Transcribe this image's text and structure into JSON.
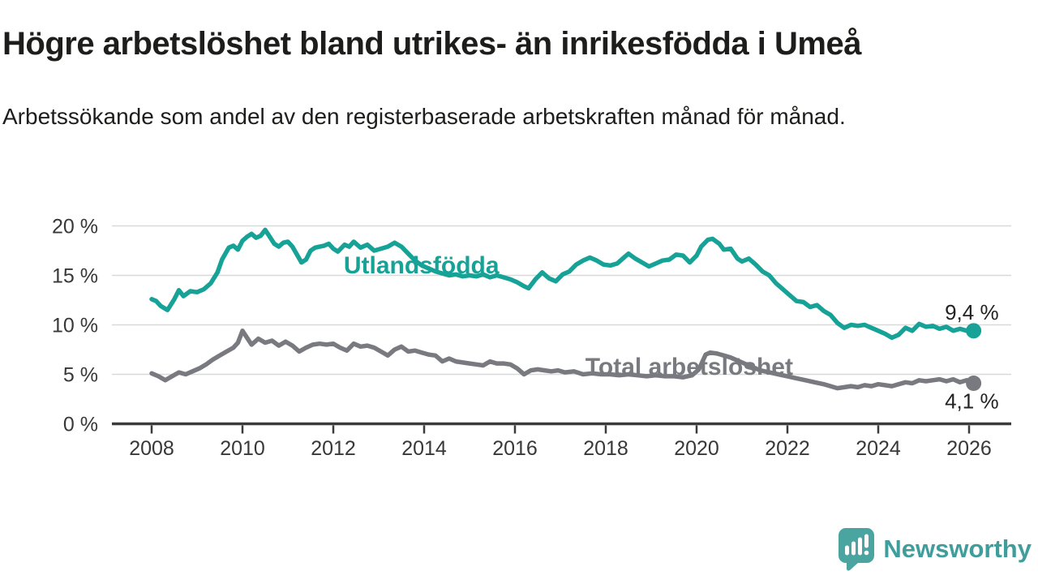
{
  "header": {
    "title": "Högre arbetslöshet bland utrikes- än inrikesfödda i Umeå",
    "subtitle": "Arbetssökande som andel av den registerbaserade arbetskraften månad för månad."
  },
  "branding": {
    "logo_text": "Newsworthy",
    "logo_icon": "speech-bubble-bar-chart-icon",
    "logo_color": "#4aa5a1",
    "logo_text_color": "#3f9e9b"
  },
  "colors": {
    "accent_teal": "#16a296",
    "accent_gray": "#797980",
    "axis_line": "#3b3b3a",
    "gridline": "#d9d9d9",
    "tick_text": "#383838",
    "annotation_text": "#222222"
  },
  "chart_data": {
    "type": "line",
    "title": "Högre arbetslöshet bland utrikes- än inrikesfödda i Umeå",
    "subtitle": "Arbetssökande som andel av den registerbaserade arbetskraften månad för månad.",
    "xlabel": "",
    "ylabel": "",
    "xlim": [
      2007.1,
      2027.0
    ],
    "ylim": [
      0,
      21
    ],
    "grid": true,
    "legend_position": "inline-labels",
    "x_ticks": [
      2008,
      2010,
      2012,
      2014,
      2016,
      2018,
      2020,
      2022,
      2024,
      2026
    ],
    "y_ticks": [
      {
        "value": 20,
        "label": "20 %"
      },
      {
        "value": 15,
        "label": "15 %"
      },
      {
        "value": 10,
        "label": "10 %"
      },
      {
        "value": 5,
        "label": "5 %"
      },
      {
        "value": 0,
        "label": "0 %"
      }
    ],
    "series": [
      {
        "name": "Utlandsfödda",
        "color": "#16a296",
        "end_label": "9,4 %",
        "end_value": 9.4,
        "label_year": 2012.23,
        "label_value": 15.2,
        "points": [
          [
            2008.0,
            12.6
          ],
          [
            2008.1,
            12.4
          ],
          [
            2008.2,
            11.9
          ],
          [
            2008.35,
            11.5
          ],
          [
            2008.5,
            12.6
          ],
          [
            2008.6,
            13.5
          ],
          [
            2008.7,
            12.9
          ],
          [
            2008.85,
            13.4
          ],
          [
            2009.0,
            13.3
          ],
          [
            2009.15,
            13.6
          ],
          [
            2009.3,
            14.2
          ],
          [
            2009.45,
            15.3
          ],
          [
            2009.55,
            16.6
          ],
          [
            2009.7,
            17.8
          ],
          [
            2009.8,
            18.0
          ],
          [
            2009.9,
            17.6
          ],
          [
            2010.0,
            18.5
          ],
          [
            2010.1,
            18.9
          ],
          [
            2010.2,
            19.2
          ],
          [
            2010.3,
            18.8
          ],
          [
            2010.4,
            19.0
          ],
          [
            2010.5,
            19.6
          ],
          [
            2010.6,
            18.9
          ],
          [
            2010.7,
            18.2
          ],
          [
            2010.8,
            17.9
          ],
          [
            2010.9,
            18.3
          ],
          [
            2011.0,
            18.4
          ],
          [
            2011.1,
            17.9
          ],
          [
            2011.2,
            17.1
          ],
          [
            2011.3,
            16.3
          ],
          [
            2011.4,
            16.6
          ],
          [
            2011.5,
            17.5
          ],
          [
            2011.6,
            17.8
          ],
          [
            2011.7,
            17.9
          ],
          [
            2011.8,
            18.0
          ],
          [
            2011.9,
            18.2
          ],
          [
            2012.0,
            17.7
          ],
          [
            2012.1,
            17.4
          ],
          [
            2012.25,
            18.1
          ],
          [
            2012.35,
            17.9
          ],
          [
            2012.45,
            18.4
          ],
          [
            2012.6,
            17.8
          ],
          [
            2012.75,
            18.1
          ],
          [
            2012.9,
            17.5
          ],
          [
            2013.05,
            17.7
          ],
          [
            2013.2,
            17.9
          ],
          [
            2013.35,
            18.3
          ],
          [
            2013.5,
            17.9
          ],
          [
            2013.65,
            17.2
          ],
          [
            2013.8,
            16.5
          ],
          [
            2013.95,
            16.0
          ],
          [
            2014.1,
            15.7
          ],
          [
            2014.25,
            15.4
          ],
          [
            2014.4,
            15.2
          ],
          [
            2014.55,
            15.0
          ],
          [
            2014.7,
            15.1
          ],
          [
            2014.85,
            14.9
          ],
          [
            2015.0,
            15.0
          ],
          [
            2015.15,
            14.9
          ],
          [
            2015.3,
            15.1
          ],
          [
            2015.45,
            14.8
          ],
          [
            2015.6,
            15.0
          ],
          [
            2015.75,
            14.8
          ],
          [
            2015.9,
            14.6
          ],
          [
            2016.05,
            14.3
          ],
          [
            2016.2,
            13.9
          ],
          [
            2016.3,
            13.7
          ],
          [
            2016.45,
            14.6
          ],
          [
            2016.6,
            15.3
          ],
          [
            2016.75,
            14.7
          ],
          [
            2016.9,
            14.4
          ],
          [
            2017.05,
            15.1
          ],
          [
            2017.2,
            15.4
          ],
          [
            2017.35,
            16.1
          ],
          [
            2017.5,
            16.5
          ],
          [
            2017.65,
            16.8
          ],
          [
            2017.8,
            16.5
          ],
          [
            2017.95,
            16.1
          ],
          [
            2018.1,
            16.0
          ],
          [
            2018.25,
            16.2
          ],
          [
            2018.4,
            16.8
          ],
          [
            2018.5,
            17.2
          ],
          [
            2018.65,
            16.7
          ],
          [
            2018.8,
            16.3
          ],
          [
            2018.95,
            15.9
          ],
          [
            2019.1,
            16.2
          ],
          [
            2019.25,
            16.5
          ],
          [
            2019.4,
            16.6
          ],
          [
            2019.55,
            17.1
          ],
          [
            2019.7,
            17.0
          ],
          [
            2019.85,
            16.3
          ],
          [
            2020.0,
            17.0
          ],
          [
            2020.1,
            17.9
          ],
          [
            2020.25,
            18.6
          ],
          [
            2020.35,
            18.7
          ],
          [
            2020.5,
            18.2
          ],
          [
            2020.6,
            17.6
          ],
          [
            2020.75,
            17.7
          ],
          [
            2020.9,
            16.7
          ],
          [
            2021.0,
            16.4
          ],
          [
            2021.15,
            16.7
          ],
          [
            2021.3,
            16.1
          ],
          [
            2021.45,
            15.4
          ],
          [
            2021.6,
            15.0
          ],
          [
            2021.75,
            14.2
          ],
          [
            2021.9,
            13.6
          ],
          [
            2022.05,
            13.0
          ],
          [
            2022.2,
            12.4
          ],
          [
            2022.35,
            12.3
          ],
          [
            2022.5,
            11.8
          ],
          [
            2022.65,
            12.0
          ],
          [
            2022.8,
            11.4
          ],
          [
            2022.95,
            11.0
          ],
          [
            2023.1,
            10.2
          ],
          [
            2023.25,
            9.7
          ],
          [
            2023.4,
            10.0
          ],
          [
            2023.55,
            9.9
          ],
          [
            2023.7,
            10.0
          ],
          [
            2023.85,
            9.7
          ],
          [
            2024.0,
            9.4
          ],
          [
            2024.15,
            9.1
          ],
          [
            2024.3,
            8.7
          ],
          [
            2024.45,
            9.0
          ],
          [
            2024.6,
            9.7
          ],
          [
            2024.75,
            9.4
          ],
          [
            2024.9,
            10.1
          ],
          [
            2025.05,
            9.8
          ],
          [
            2025.2,
            9.9
          ],
          [
            2025.35,
            9.6
          ],
          [
            2025.5,
            9.8
          ],
          [
            2025.65,
            9.4
          ],
          [
            2025.8,
            9.6
          ],
          [
            2025.95,
            9.4
          ],
          [
            2026.1,
            9.4
          ]
        ]
      },
      {
        "name": "Total arbetslöshet",
        "color": "#797980",
        "end_label": "4,1 %",
        "end_value": 4.1,
        "label_year": 2017.55,
        "label_value": 4.96,
        "points": [
          [
            2008.0,
            5.1
          ],
          [
            2008.15,
            4.8
          ],
          [
            2008.3,
            4.4
          ],
          [
            2008.45,
            4.8
          ],
          [
            2008.6,
            5.2
          ],
          [
            2008.75,
            5.0
          ],
          [
            2008.9,
            5.3
          ],
          [
            2009.05,
            5.6
          ],
          [
            2009.2,
            6.0
          ],
          [
            2009.35,
            6.5
          ],
          [
            2009.5,
            6.9
          ],
          [
            2009.65,
            7.3
          ],
          [
            2009.8,
            7.7
          ],
          [
            2009.9,
            8.2
          ],
          [
            2010.0,
            9.4
          ],
          [
            2010.1,
            8.7
          ],
          [
            2010.2,
            8.0
          ],
          [
            2010.35,
            8.6
          ],
          [
            2010.5,
            8.2
          ],
          [
            2010.65,
            8.4
          ],
          [
            2010.8,
            7.9
          ],
          [
            2010.95,
            8.3
          ],
          [
            2011.1,
            7.9
          ],
          [
            2011.25,
            7.3
          ],
          [
            2011.4,
            7.7
          ],
          [
            2011.55,
            8.0
          ],
          [
            2011.7,
            8.1
          ],
          [
            2011.85,
            8.0
          ],
          [
            2012.0,
            8.1
          ],
          [
            2012.15,
            7.7
          ],
          [
            2012.3,
            7.4
          ],
          [
            2012.45,
            8.1
          ],
          [
            2012.6,
            7.8
          ],
          [
            2012.75,
            7.9
          ],
          [
            2012.9,
            7.7
          ],
          [
            2013.05,
            7.3
          ],
          [
            2013.2,
            6.9
          ],
          [
            2013.35,
            7.5
          ],
          [
            2013.5,
            7.8
          ],
          [
            2013.65,
            7.3
          ],
          [
            2013.8,
            7.4
          ],
          [
            2013.95,
            7.2
          ],
          [
            2014.1,
            7.0
          ],
          [
            2014.25,
            6.9
          ],
          [
            2014.4,
            6.3
          ],
          [
            2014.55,
            6.6
          ],
          [
            2014.7,
            6.3
          ],
          [
            2014.85,
            6.2
          ],
          [
            2015.0,
            6.1
          ],
          [
            2015.15,
            6.0
          ],
          [
            2015.3,
            5.9
          ],
          [
            2015.45,
            6.3
          ],
          [
            2015.6,
            6.1
          ],
          [
            2015.75,
            6.1
          ],
          [
            2015.9,
            6.0
          ],
          [
            2016.05,
            5.6
          ],
          [
            2016.2,
            5.0
          ],
          [
            2016.35,
            5.4
          ],
          [
            2016.5,
            5.5
          ],
          [
            2016.65,
            5.4
          ],
          [
            2016.8,
            5.3
          ],
          [
            2016.95,
            5.4
          ],
          [
            2017.1,
            5.2
          ],
          [
            2017.3,
            5.3
          ],
          [
            2017.5,
            5.0
          ],
          [
            2017.7,
            5.1
          ],
          [
            2017.9,
            5.0
          ],
          [
            2018.1,
            5.0
          ],
          [
            2018.3,
            4.9
          ],
          [
            2018.5,
            5.0
          ],
          [
            2018.7,
            4.9
          ],
          [
            2018.9,
            4.8
          ],
          [
            2019.1,
            4.9
          ],
          [
            2019.3,
            4.8
          ],
          [
            2019.5,
            4.8
          ],
          [
            2019.7,
            4.7
          ],
          [
            2019.9,
            4.9
          ],
          [
            2020.05,
            5.5
          ],
          [
            2020.2,
            7.0
          ],
          [
            2020.3,
            7.2
          ],
          [
            2020.45,
            7.1
          ],
          [
            2020.6,
            6.9
          ],
          [
            2020.75,
            6.7
          ],
          [
            2020.9,
            6.4
          ],
          [
            2021.05,
            6.1
          ],
          [
            2021.2,
            5.8
          ],
          [
            2021.4,
            5.4
          ],
          [
            2021.6,
            5.2
          ],
          [
            2021.8,
            5.0
          ],
          [
            2022.0,
            4.8
          ],
          [
            2022.2,
            4.6
          ],
          [
            2022.4,
            4.4
          ],
          [
            2022.6,
            4.2
          ],
          [
            2022.8,
            4.0
          ],
          [
            2022.95,
            3.8
          ],
          [
            2023.1,
            3.6
          ],
          [
            2023.25,
            3.7
          ],
          [
            2023.4,
            3.8
          ],
          [
            2023.55,
            3.7
          ],
          [
            2023.7,
            3.9
          ],
          [
            2023.85,
            3.8
          ],
          [
            2024.0,
            4.0
          ],
          [
            2024.15,
            3.9
          ],
          [
            2024.3,
            3.8
          ],
          [
            2024.45,
            4.0
          ],
          [
            2024.6,
            4.2
          ],
          [
            2024.75,
            4.1
          ],
          [
            2024.9,
            4.4
          ],
          [
            2025.05,
            4.3
          ],
          [
            2025.2,
            4.4
          ],
          [
            2025.35,
            4.5
          ],
          [
            2025.5,
            4.3
          ],
          [
            2025.65,
            4.5
          ],
          [
            2025.8,
            4.2
          ],
          [
            2025.95,
            4.4
          ],
          [
            2026.1,
            4.1
          ]
        ]
      }
    ]
  }
}
